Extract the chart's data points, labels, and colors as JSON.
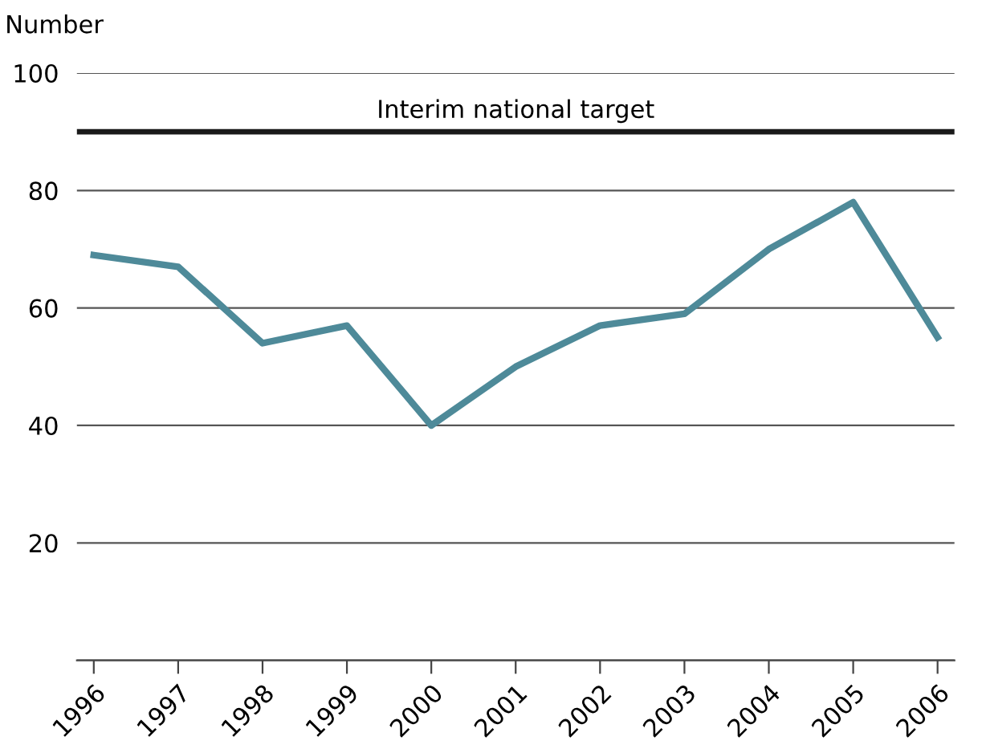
{
  "chart_data": {
    "type": "line",
    "ylabel": "Number",
    "x": [
      1996,
      1997,
      1998,
      1999,
      2000,
      2001,
      2002,
      2003,
      2004,
      2005,
      2006
    ],
    "series": [
      {
        "color": "#4e8a99",
        "values": [
          69,
          67,
          54,
          57,
          40,
          50,
          57,
          59,
          70,
          78,
          55
        ]
      }
    ],
    "xlim": [
      1995.8,
      2006.2
    ],
    "xticks": [
      1996,
      1997,
      1998,
      1999,
      2000,
      2001,
      2002,
      2003,
      2004,
      2005,
      2006
    ],
    "ylim": [
      0,
      100
    ],
    "yticks": [
      {
        "value": 0,
        "label": null
      },
      20,
      40,
      60,
      80,
      100
    ],
    "grid": "y",
    "legend": false,
    "marker": "none",
    "line_style": "solid",
    "ref_lines": [
      {
        "axis": "y",
        "value": 90,
        "label": "Interim national target",
        "color": "#1a1a1a"
      }
    ]
  }
}
